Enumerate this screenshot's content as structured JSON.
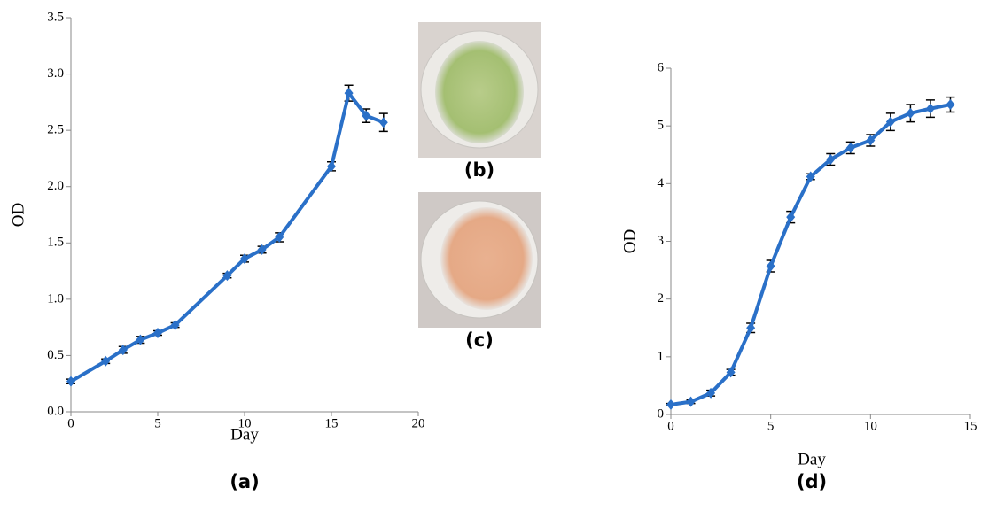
{
  "chart_data": [
    {
      "type": "line",
      "panel_label": "(a)",
      "x_label": "Day",
      "y_label": "OD",
      "color": "#2a70c8",
      "x": [
        0,
        2,
        3,
        4,
        5,
        6,
        9,
        10,
        11,
        12,
        15,
        16,
        17,
        18
      ],
      "values": [
        0.27,
        0.45,
        0.55,
        0.64,
        0.7,
        0.77,
        1.21,
        1.36,
        1.44,
        1.55,
        2.18,
        2.83,
        2.63,
        2.57
      ],
      "errors": [
        0.02,
        0.02,
        0.03,
        0.03,
        0.02,
        0.02,
        0.02,
        0.03,
        0.03,
        0.04,
        0.04,
        0.07,
        0.06,
        0.08
      ],
      "xlim": [
        0,
        20
      ],
      "xticks": [
        0,
        5,
        10,
        15,
        20
      ],
      "ylim": [
        0,
        3.5
      ],
      "yticks": [
        {
          "value": 0,
          "label": "0.0"
        },
        0.5,
        {
          "value": 1,
          "label": "1.0"
        },
        1.5,
        {
          "value": 2,
          "label": "2.0"
        },
        2.5,
        {
          "value": 3,
          "label": "3.0"
        },
        3.5
      ]
    },
    {
      "type": "line",
      "panel_label": "(d)",
      "x_label": "Day",
      "y_label": "OD",
      "color": "#2a70c8",
      "x": [
        0,
        1,
        2,
        3,
        4,
        5,
        6,
        7,
        8,
        9,
        10,
        11,
        12,
        13,
        14
      ],
      "values": [
        0.17,
        0.22,
        0.37,
        0.73,
        1.5,
        2.57,
        3.42,
        4.12,
        4.42,
        4.62,
        4.75,
        5.07,
        5.22,
        5.3,
        5.37
      ],
      "errors": [
        0.02,
        0.03,
        0.05,
        0.05,
        0.08,
        0.1,
        0.1,
        0.05,
        0.1,
        0.1,
        0.1,
        0.15,
        0.15,
        0.15,
        0.13
      ],
      "xlim": [
        0,
        15
      ],
      "xticks": [
        0,
        5,
        10,
        15
      ],
      "ylim": [
        0,
        6
      ],
      "yticks": [
        0,
        1,
        2,
        3,
        4,
        5,
        6
      ]
    }
  ],
  "photos": [
    {
      "label": "(b)"
    },
    {
      "label": "(c)"
    }
  ]
}
